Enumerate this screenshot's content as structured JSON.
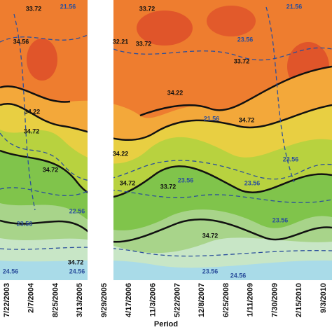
{
  "chart_data": {
    "type": "contour",
    "x_label": "Period",
    "categories": [
      "7/22/2003",
      "2/7/2004",
      "8/25/2004",
      "3/13/2005",
      "9/29/2005",
      "4/17/2006",
      "11/3/2006",
      "5/22/2007",
      "12/8/2007",
      "6/25/2008",
      "1/11/2009",
      "7/30/2009",
      "2/15/2010",
      "9/3/2010"
    ],
    "contour_labels": [
      "33.72",
      "21.56",
      "33.72",
      "21.56",
      "34.56",
      "32.21",
      "33.72",
      "23.56",
      "33.72",
      "34.22",
      "34.72",
      "34.22",
      "21.56",
      "34.72",
      "34.22",
      "23.56",
      "23.56",
      "34.72",
      "34.72",
      "33.72",
      "23.56",
      "22.56",
      "23.56",
      "34.72",
      "23.56",
      "34.72",
      "24.56",
      "24.56",
      "23.56",
      "24.56"
    ]
  }
}
